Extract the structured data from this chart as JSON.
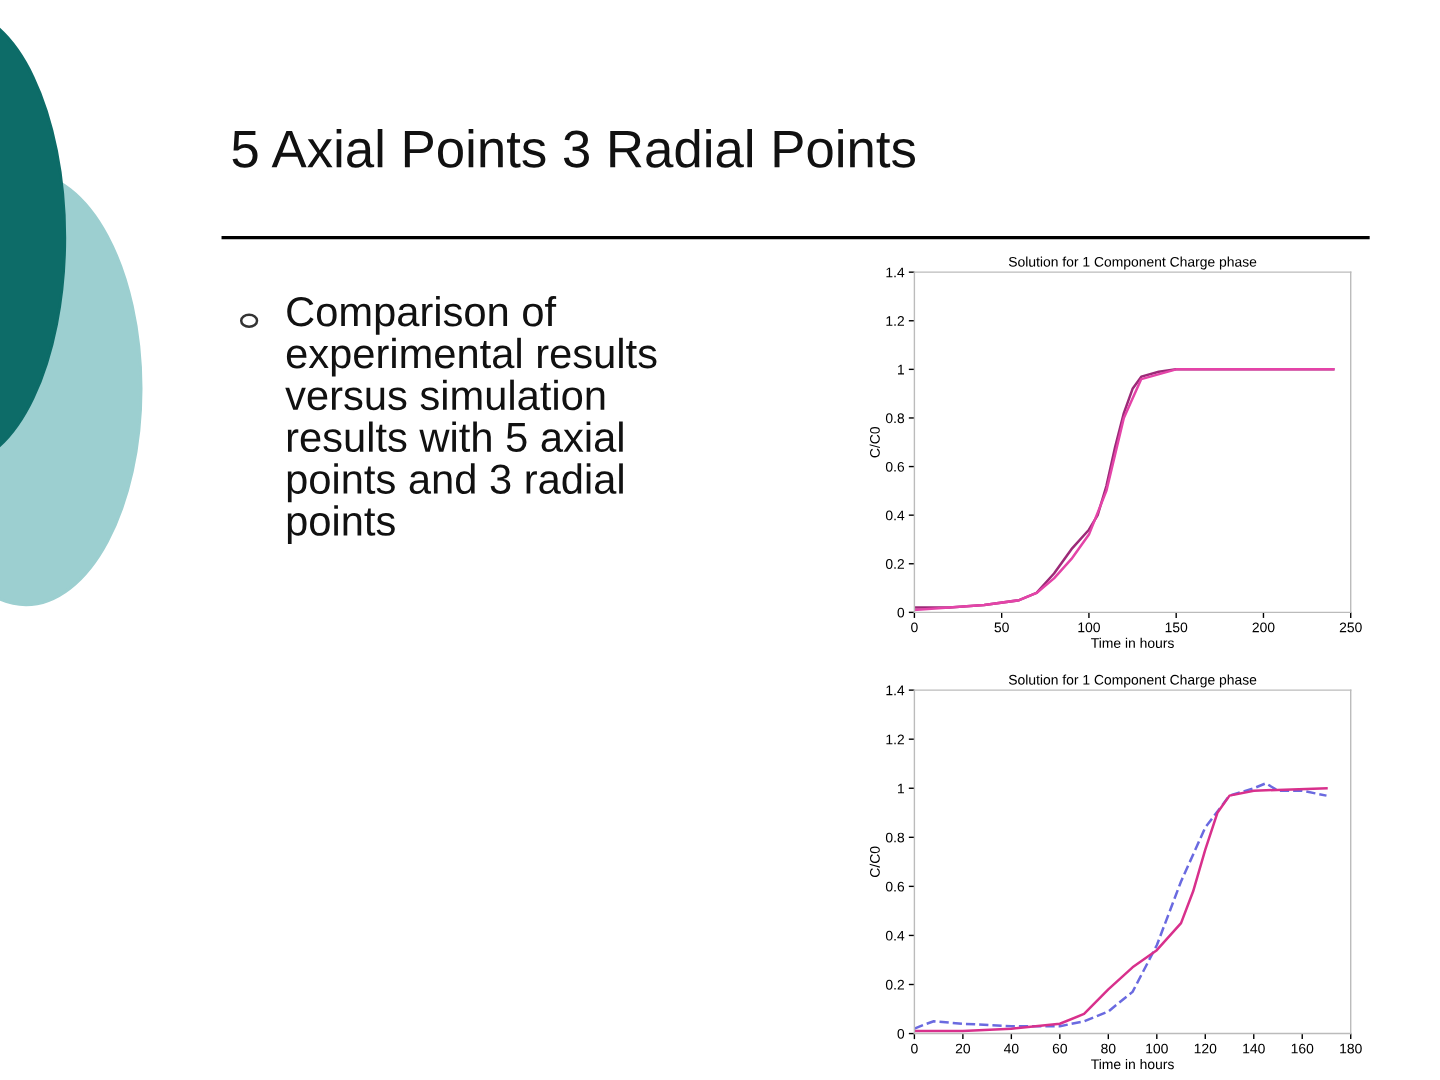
{
  "chart_data": [
    {
      "type": "line",
      "title": "Solution for 1 Component Charge phase",
      "xlabel": "Time in hours",
      "ylabel": "C/C0",
      "annotations": [
        "5 Axial Points 3 Radial Points",
        "Comparison of\nexperimental results\nversus simulation\nresults with 5 axial\npoints and 3 radial\npoints"
      ],
      "series": [
        {
          "color": "#9c2a78",
          "line_style": "solid",
          "x": [
            0,
            20,
            40,
            60,
            70,
            80,
            90,
            100,
            105,
            110,
            115,
            120,
            125,
            130,
            140,
            150,
            240
          ],
          "values": [
            0.02,
            0.02,
            0.03,
            0.05,
            0.08,
            0.16,
            0.26,
            0.34,
            0.4,
            0.52,
            0.68,
            0.82,
            0.92,
            0.97,
            0.99,
            1.0,
            1.0
          ]
        },
        {
          "color": "#e444a8",
          "line_style": "solid",
          "x": [
            0,
            40,
            60,
            70,
            80,
            90,
            100,
            110,
            120,
            130,
            150,
            240
          ],
          "values": [
            0.01,
            0.03,
            0.05,
            0.08,
            0.14,
            0.22,
            0.32,
            0.5,
            0.8,
            0.96,
            1.0,
            1.0
          ]
        }
      ],
      "xlim": [
        0,
        250
      ],
      "xticks": [
        0,
        50,
        100,
        150,
        200,
        250
      ],
      "ylim": [
        0,
        1.4
      ],
      "yticks": [
        0,
        0.2,
        0.4,
        0.6,
        0.8,
        1,
        1.2,
        1.4
      ],
      "grid": false,
      "legend": false
    },
    {
      "type": "line",
      "title": "Solution for 1 Component Charge phase",
      "xlabel": "Time in hours",
      "ylabel": "C/C0",
      "series": [
        {
          "color": "#6a6ae0",
          "line_style": "dashed",
          "x": [
            0,
            5,
            8,
            20,
            40,
            60,
            70,
            80,
            90,
            100,
            110,
            120,
            130,
            140,
            145,
            150,
            160,
            170
          ],
          "values": [
            0.02,
            0.04,
            0.05,
            0.04,
            0.03,
            0.03,
            0.05,
            0.09,
            0.17,
            0.36,
            0.62,
            0.84,
            0.97,
            1.0,
            1.02,
            0.99,
            0.99,
            0.97
          ]
        },
        {
          "color": "#d8308c",
          "line_style": "solid",
          "x": [
            0,
            20,
            40,
            60,
            70,
            80,
            90,
            100,
            110,
            115,
            120,
            125,
            130,
            140,
            170
          ],
          "values": [
            0.01,
            0.01,
            0.02,
            0.04,
            0.08,
            0.18,
            0.27,
            0.34,
            0.45,
            0.58,
            0.75,
            0.9,
            0.97,
            0.99,
            1.0
          ]
        }
      ],
      "xlim": [
        0,
        180
      ],
      "xticks": [
        0,
        20,
        40,
        60,
        80,
        100,
        120,
        140,
        160,
        180
      ],
      "ylim": [
        0,
        1.4
      ],
      "yticks": [
        0,
        0.2,
        0.4,
        0.6,
        0.8,
        1,
        1.2,
        1.4
      ],
      "grid": false,
      "legend": false
    }
  ]
}
